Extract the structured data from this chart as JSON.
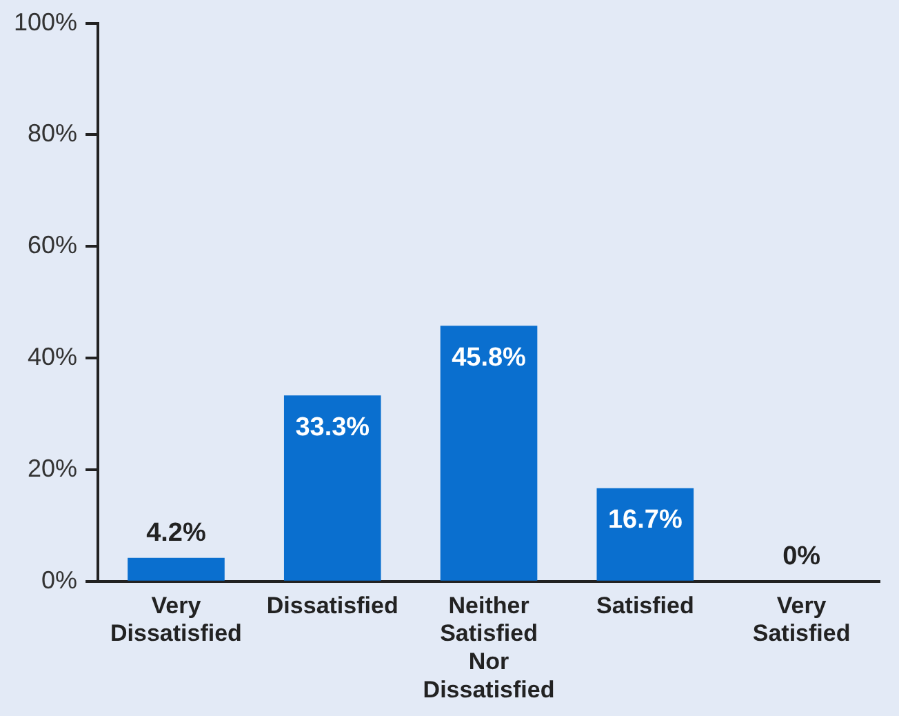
{
  "chart_data": {
    "type": "bar",
    "categories": [
      "Very Dissatisfied",
      "Dissatisfied",
      "Neither Satisfied Nor Dissatisfied",
      "Satisfied",
      "Very Satisfied"
    ],
    "values": [
      4.2,
      33.3,
      45.8,
      16.7,
      0
    ],
    "value_labels": [
      "4.2%",
      "33.3%",
      "45.8%",
      "16.7%",
      "0%"
    ],
    "color": "#0a6fcf",
    "ylim": [
      0,
      100
    ],
    "yticks": [
      {
        "value": 0,
        "label": "0%"
      },
      {
        "value": 20,
        "label": "20%"
      },
      {
        "value": 40,
        "label": "40%"
      },
      {
        "value": 60,
        "label": "60%"
      },
      {
        "value": 80,
        "label": "80%"
      },
      {
        "value": 100,
        "label": "100%"
      }
    ],
    "grid": false,
    "legend": false
  }
}
